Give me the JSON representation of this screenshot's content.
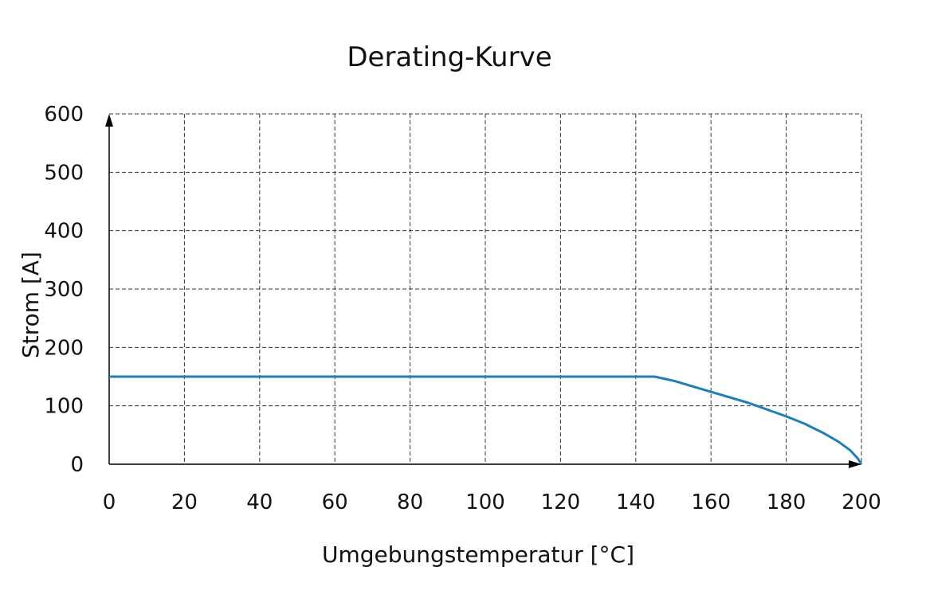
{
  "chart_data": {
    "type": "line",
    "title": "Derating-Kurve",
    "xlabel": "Umgebungstemperatur [°C]",
    "ylabel": "Strom [A]",
    "xlim": [
      0,
      200
    ],
    "ylim": [
      0,
      600
    ],
    "x_ticks": [
      0,
      20,
      40,
      60,
      80,
      100,
      120,
      140,
      160,
      180,
      200
    ],
    "y_ticks": [
      0,
      100,
      200,
      300,
      400,
      500,
      600
    ],
    "grid": true,
    "series": [
      {
        "color": "#1f7fb5",
        "x": [
          0,
          145,
          150,
          160,
          170,
          180,
          185,
          190,
          194,
          197,
          199,
          200
        ],
        "y": [
          150,
          150,
          143,
          124,
          105,
          82,
          69,
          53,
          38,
          24,
          10,
          0
        ]
      }
    ]
  }
}
